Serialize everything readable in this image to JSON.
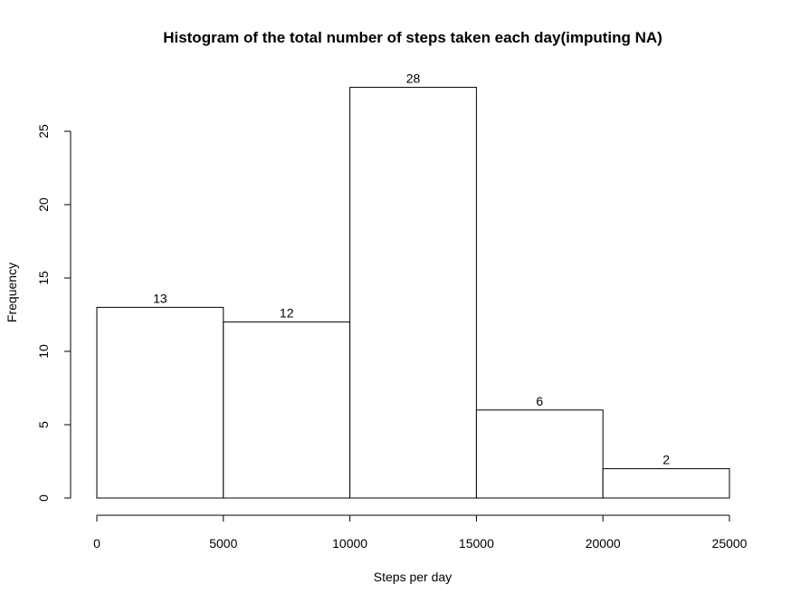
{
  "chart_data": {
    "type": "bar",
    "title": "Histogram of the total number of steps taken each day(imputing NA)",
    "xlabel": "Steps per day",
    "ylabel": "Frequency",
    "bins": [
      {
        "from": 0,
        "to": 5000,
        "value": 13
      },
      {
        "from": 5000,
        "to": 10000,
        "value": 12
      },
      {
        "from": 10000,
        "to": 15000,
        "value": 28
      },
      {
        "from": 15000,
        "to": 20000,
        "value": 6
      },
      {
        "from": 20000,
        "to": 25000,
        "value": 2
      }
    ],
    "data_labels": [
      "13",
      "12",
      "28",
      "6",
      "2"
    ],
    "xlim": [
      0,
      25000
    ],
    "ylim": [
      0,
      28
    ],
    "x_ticks": [
      0,
      5000,
      10000,
      15000,
      20000,
      25000
    ],
    "x_tick_labels": [
      "0",
      "5000",
      "10000",
      "15000",
      "20000",
      "25000"
    ],
    "y_ticks": [
      0,
      5,
      10,
      15,
      20,
      25
    ],
    "y_tick_labels": [
      "0",
      "5",
      "10",
      "15",
      "20",
      "25"
    ],
    "grid": false,
    "legend": "none"
  }
}
